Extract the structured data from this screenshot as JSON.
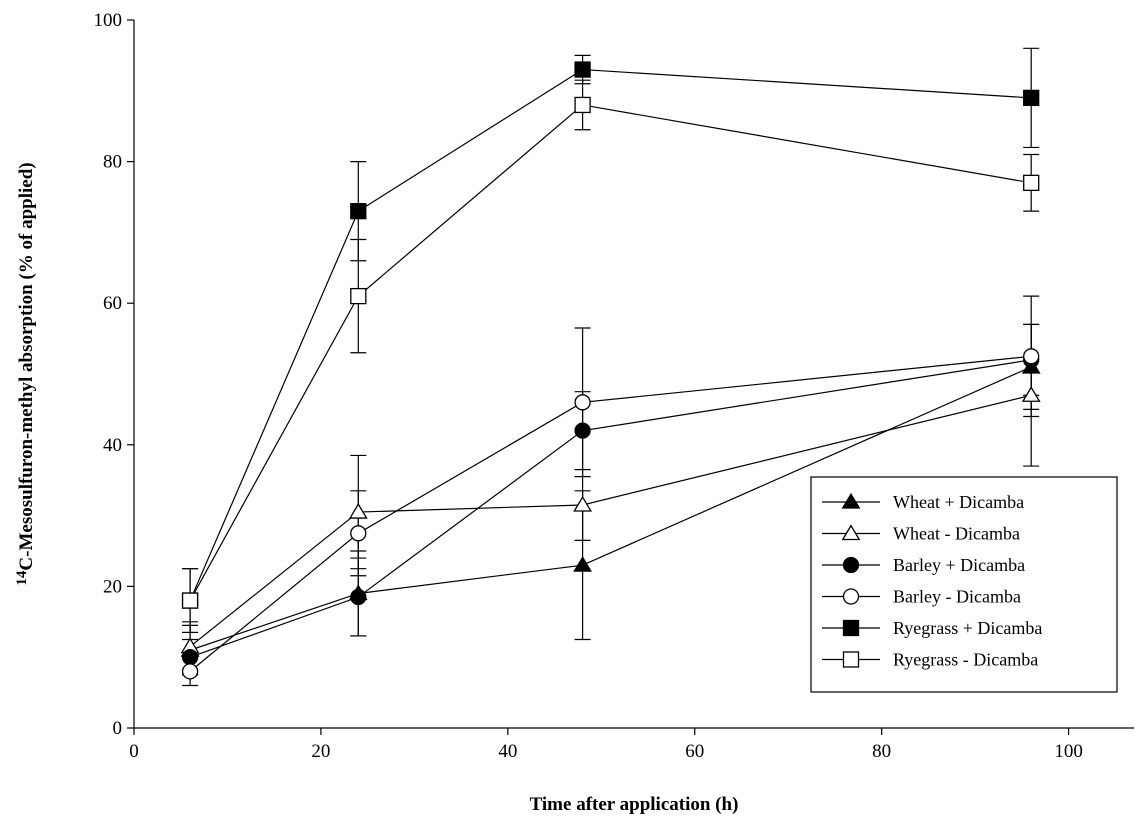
{
  "chart_data": {
    "type": "line",
    "xlabel": "Time after application (h)",
    "ylabel_sup": "14",
    "ylabel": "C-Mesosulfuron-methyl absorption (% of applied)",
    "xlim": [
      0,
      107
    ],
    "ylim": [
      0,
      100
    ],
    "x_ticks": [
      "0",
      "20",
      "40",
      "60",
      "80",
      "100"
    ],
    "y_ticks": [
      "0",
      "20",
      "40",
      "60",
      "80",
      "100"
    ],
    "legend_position": "lower-right",
    "x": [
      6,
      24,
      48,
      96
    ],
    "series": [
      {
        "name": "Wheat + Dicamba",
        "marker": "triangle",
        "filled": true,
        "values": [
          11,
          19,
          23,
          51
        ],
        "errors": [
          3.5,
          6,
          10.5,
          6
        ]
      },
      {
        "name": "Wheat - Dicamba",
        "marker": "triangle",
        "filled": false,
        "values": [
          11.5,
          30.5,
          31.5,
          47
        ],
        "errors": [
          3.5,
          8,
          5,
          10
        ]
      },
      {
        "name": "Barley + Dicamba",
        "marker": "circle",
        "filled": true,
        "values": [
          10,
          18.5,
          42,
          52
        ],
        "errors": [
          2.5,
          5.5,
          5.5,
          5
        ]
      },
      {
        "name": "Barley - Dicamba",
        "marker": "circle",
        "filled": false,
        "values": [
          8,
          27.5,
          46,
          52.5
        ],
        "errors": [
          2,
          6,
          10.5,
          8.5
        ]
      },
      {
        "name": "Ryegrass + Dicamba",
        "marker": "square",
        "filled": true,
        "values": [
          18,
          73,
          93,
          89
        ],
        "errors": [
          4.5,
          7,
          2,
          7
        ]
      },
      {
        "name": "Ryegrass - Dicamba",
        "marker": "square",
        "filled": false,
        "values": [
          18,
          61,
          88,
          77
        ],
        "errors": [
          4.5,
          8,
          3.5,
          4
        ]
      }
    ]
  }
}
